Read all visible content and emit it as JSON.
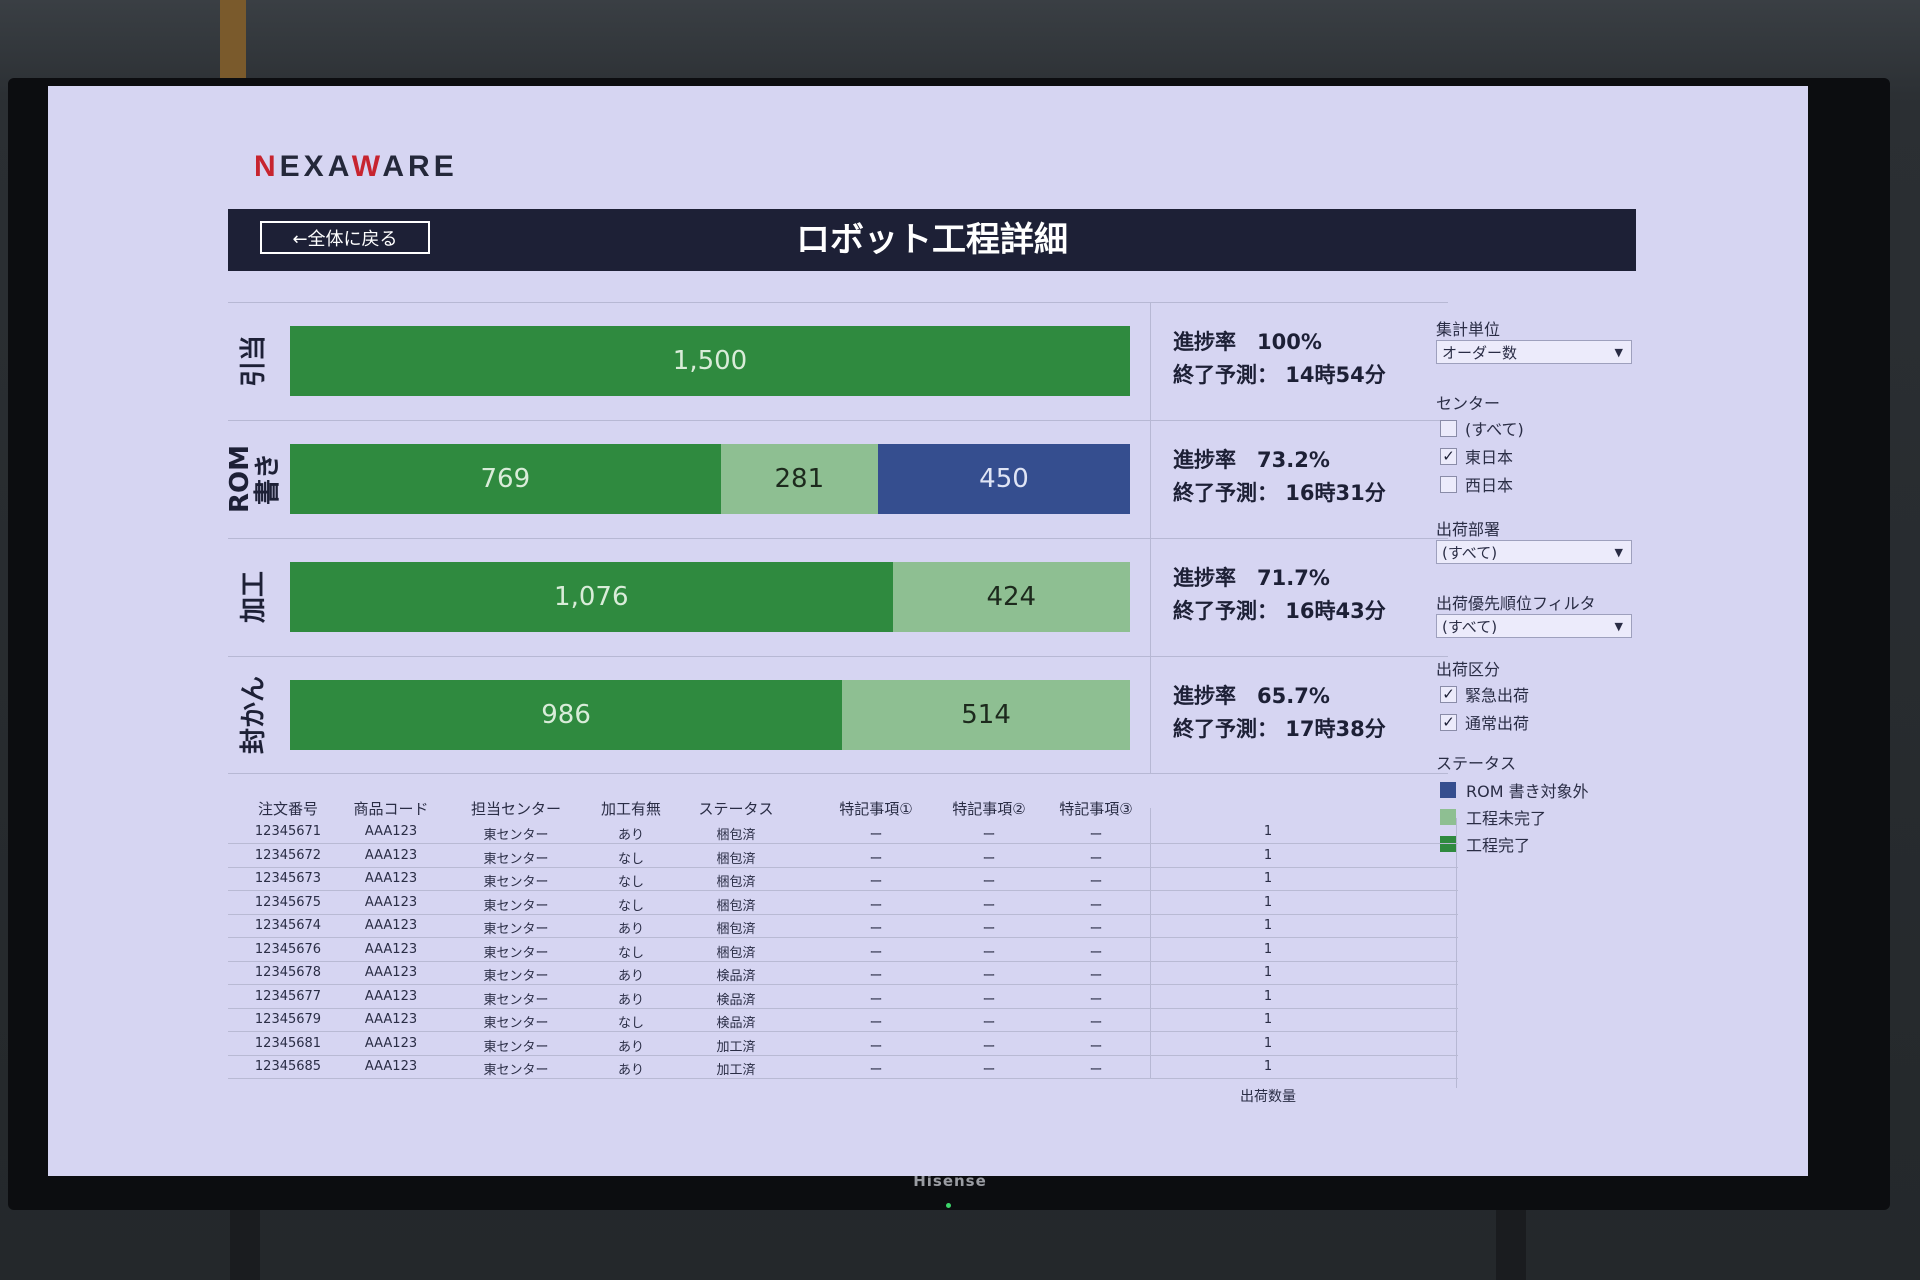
{
  "header": {
    "logo_pre": "N",
    "logo_mid1": "EXA",
    "logo_w": "W",
    "logo_mid2": "ARE",
    "back_label": "←全体に戻る",
    "title": "ロボット工程詳細"
  },
  "chart_data": {
    "type": "bar",
    "orientation": "horizontal-stacked",
    "categories": [
      "引当",
      "ROM書き",
      "加工",
      "封かん"
    ],
    "series": [
      {
        "name": "工程完了",
        "values": [
          1500,
          769,
          1076,
          986
        ]
      },
      {
        "name": "工程未完了",
        "values": [
          0,
          281,
          424,
          514
        ]
      },
      {
        "name": "ROM 書き対象外",
        "values": [
          0,
          450,
          0,
          0
        ]
      }
    ],
    "data_labels": [
      [
        "1,500"
      ],
      [
        "769",
        "281",
        "450"
      ],
      [
        "1,076",
        "424"
      ],
      [
        "986",
        "514"
      ]
    ],
    "total": 1500
  },
  "rows": [
    {
      "label1": "引当",
      "label2": "",
      "rate_label": "進捗率",
      "rate": "100%",
      "eta_label": "終了予測：",
      "eta": "14時54分"
    },
    {
      "label1": "ROM",
      "label2": "書き",
      "rate_label": "進捗率",
      "rate": "73.2%",
      "eta_label": "終了予測：",
      "eta": "16時31分"
    },
    {
      "label1": "加工",
      "label2": "",
      "rate_label": "進捗率",
      "rate": "71.7%",
      "eta_label": "終了予測：",
      "eta": "16時43分"
    },
    {
      "label1": "封かん",
      "label2": "",
      "rate_label": "進捗率",
      "rate": "65.7%",
      "eta_label": "終了予測：",
      "eta": "17時38分"
    }
  ],
  "filters": {
    "unit_label": "集計単位",
    "unit_value": "オーダー数",
    "center_label": "センター",
    "center_options": [
      {
        "label": "(すべて)",
        "checked": false
      },
      {
        "label": "東日本",
        "checked": true
      },
      {
        "label": "西日本",
        "checked": false
      }
    ],
    "dept_label": "出荷部署",
    "dept_value": "(すべて)",
    "priority_label": "出荷優先順位フィルタ",
    "priority_value": "(すべて)",
    "ship_label": "出荷区分",
    "ship_options": [
      {
        "label": "緊急出荷",
        "checked": true
      },
      {
        "label": "通常出荷",
        "checked": true
      }
    ],
    "status_label": "ステータス",
    "legend": [
      {
        "label": "ROM 書き対象外",
        "color": "#354e8f"
      },
      {
        "label": "工程未完了",
        "color": "#8ebf92"
      },
      {
        "label": "工程完了",
        "color": "#2f8a3f"
      }
    ]
  },
  "table": {
    "headers": [
      "注文番号",
      "商品コード",
      "担当センター",
      "加工有無",
      "ステータス",
      "特記事項①",
      "特記事項②",
      "特記事項③"
    ],
    "quantity_label": "出荷数量",
    "rows": [
      [
        "12345671",
        "AAA123",
        "東センター",
        "あり",
        "梱包済",
        "ー",
        "ー",
        "ー",
        "1"
      ],
      [
        "12345672",
        "AAA123",
        "東センター",
        "なし",
        "梱包済",
        "ー",
        "ー",
        "ー",
        "1"
      ],
      [
        "12345673",
        "AAA123",
        "東センター",
        "なし",
        "梱包済",
        "ー",
        "ー",
        "ー",
        "1"
      ],
      [
        "12345675",
        "AAA123",
        "東センター",
        "なし",
        "梱包済",
        "ー",
        "ー",
        "ー",
        "1"
      ],
      [
        "12345674",
        "AAA123",
        "東センター",
        "あり",
        "梱包済",
        "ー",
        "ー",
        "ー",
        "1"
      ],
      [
        "12345676",
        "AAA123",
        "東センター",
        "なし",
        "梱包済",
        "ー",
        "ー",
        "ー",
        "1"
      ],
      [
        "12345678",
        "AAA123",
        "東センター",
        "あり",
        "検品済",
        "ー",
        "ー",
        "ー",
        "1"
      ],
      [
        "12345677",
        "AAA123",
        "東センター",
        "あり",
        "検品済",
        "ー",
        "ー",
        "ー",
        "1"
      ],
      [
        "12345679",
        "AAA123",
        "東センター",
        "なし",
        "検品済",
        "ー",
        "ー",
        "ー",
        "1"
      ],
      [
        "12345681",
        "AAA123",
        "東センター",
        "あり",
        "加工済",
        "ー",
        "ー",
        "ー",
        "1"
      ],
      [
        "12345685",
        "AAA123",
        "東センター",
        "あり",
        "加工済",
        "ー",
        "ー",
        "ー",
        "1"
      ]
    ]
  },
  "tv_brand": "Hisense"
}
